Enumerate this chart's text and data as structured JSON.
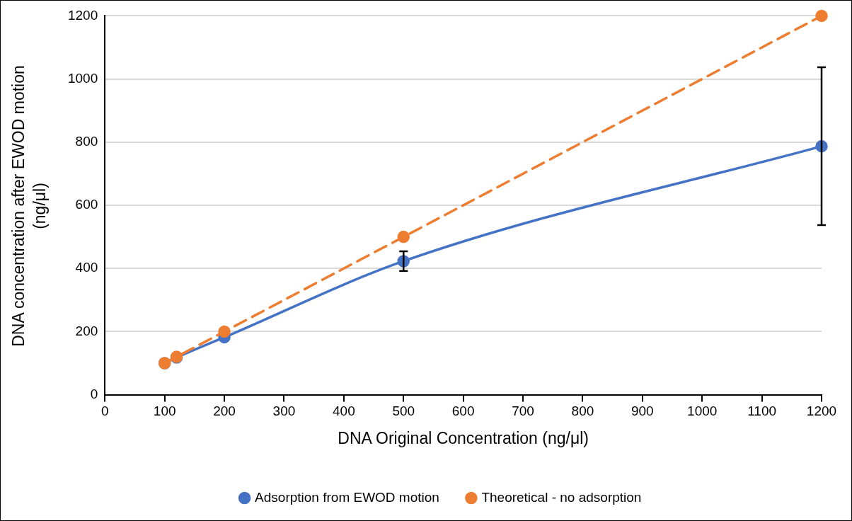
{
  "chart_data": {
    "type": "line",
    "xlabel": "DNA Original Concentration (ng/μl)",
    "ylabel": "DNA concentration after EWOD motion\n(ng/μl)",
    "xlim": [
      0,
      1200
    ],
    "xticks": [
      0,
      100,
      200,
      300,
      400,
      500,
      600,
      700,
      800,
      900,
      1000,
      1100,
      1200
    ],
    "ylim": [
      0,
      1200
    ],
    "yticks": [
      0,
      200,
      400,
      600,
      800,
      1000,
      1200
    ],
    "grid": "y",
    "legend": "bottom",
    "marker": "circle",
    "series": [
      {
        "name": "Adsorption from EWOD motion",
        "color": "#4472c4",
        "line_style": "solid",
        "x": [
          100,
          120,
          200,
          500,
          1200
        ],
        "values": [
          100,
          118,
          182,
          423,
          787
        ],
        "errors": [
          null,
          null,
          null,
          31,
          250
        ]
      },
      {
        "name": "Theoretical - no adsorption",
        "color": "#ed7d31",
        "line_style": "dashed",
        "x": [
          100,
          120,
          200,
          500,
          1200
        ],
        "values": [
          100,
          120,
          200,
          500,
          1200
        ]
      }
    ]
  }
}
